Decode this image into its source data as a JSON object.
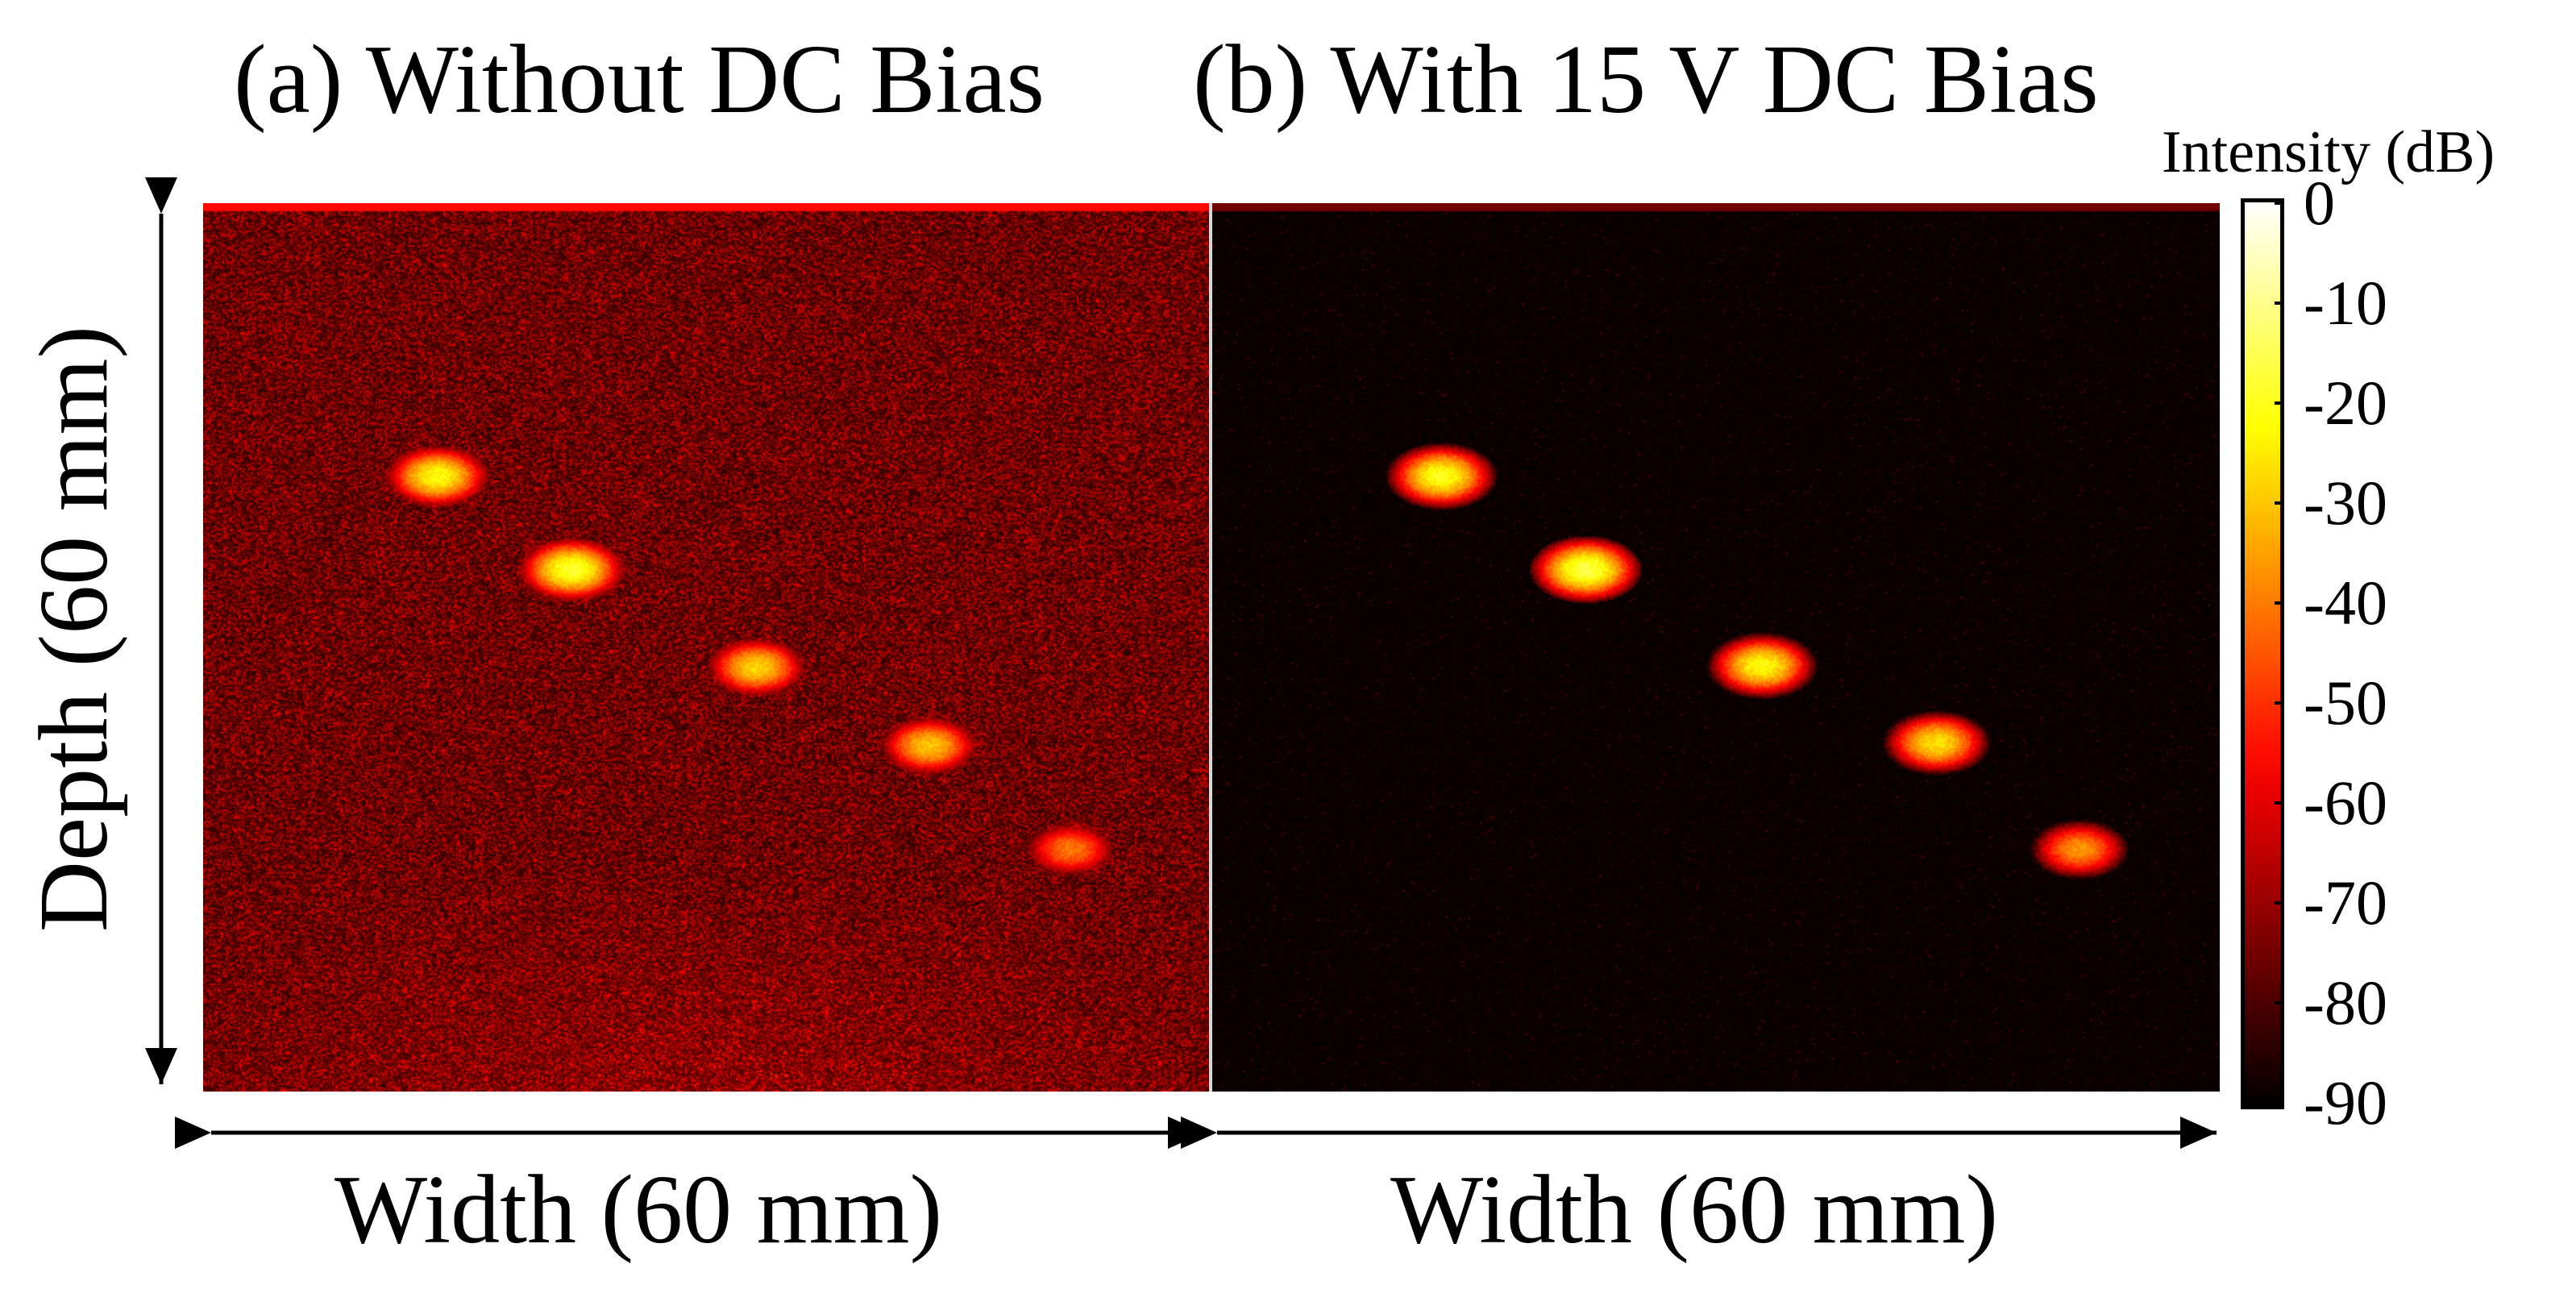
{
  "panels": [
    {
      "title": "(a) Without DC Bias",
      "xlabel": "Width (60 mm)",
      "background_level_db": -68,
      "point_targets": [
        {
          "width_mm": 13.9,
          "depth_mm": 18.4,
          "peak_db": -22
        },
        {
          "width_mm": 21.9,
          "depth_mm": 24.7,
          "peak_db": -18
        },
        {
          "width_mm": 32.9,
          "depth_mm": 31.3,
          "peak_db": -28
        },
        {
          "width_mm": 43.2,
          "depth_mm": 36.6,
          "peak_db": -30
        },
        {
          "width_mm": 51.6,
          "depth_mm": 43.6,
          "peak_db": -40
        }
      ]
    },
    {
      "title": "(b) With 15 V DC Bias",
      "xlabel": "Width (60 mm)",
      "background_level_db": -90,
      "point_targets": [
        {
          "width_mm": 13.6,
          "depth_mm": 18.4,
          "peak_db": -20
        },
        {
          "width_mm": 22.2,
          "depth_mm": 24.7,
          "peak_db": -16
        },
        {
          "width_mm": 32.7,
          "depth_mm": 31.2,
          "peak_db": -22
        },
        {
          "width_mm": 43.1,
          "depth_mm": 36.4,
          "peak_db": -26
        },
        {
          "width_mm": 51.6,
          "depth_mm": 43.6,
          "peak_db": -36
        }
      ]
    }
  ],
  "ylabel": "Depth (60 mm)",
  "colorbar": {
    "title": "Intensity (dB)",
    "ticks": [
      "0",
      "-10",
      "-20",
      "-30",
      "-40",
      "-50",
      "-60",
      "-70",
      "-80",
      "-90"
    ],
    "range_db": [
      -90,
      0
    ],
    "colormap": "hot"
  },
  "colors": {
    "arrow": "#000000",
    "divider": "#d8d8d8"
  }
}
